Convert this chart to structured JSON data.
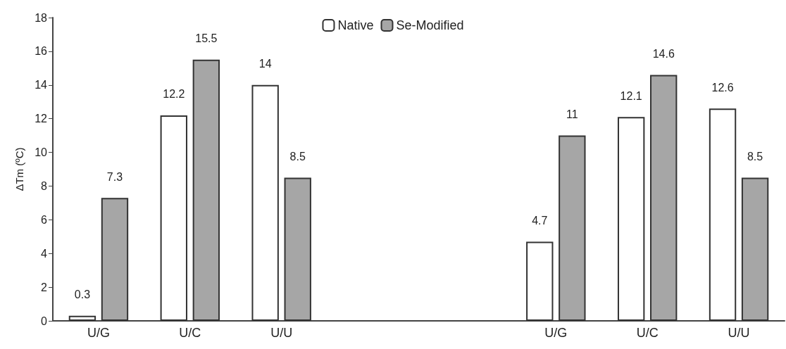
{
  "chart_data": {
    "type": "bar",
    "ylabel": "ΔTm (ºC)",
    "categories": [
      "U/G",
      "U/C",
      "U/U",
      null,
      null,
      "U/G",
      "U/C",
      "U/U"
    ],
    "series": [
      {
        "name": "Native",
        "color": "#ffffff",
        "values": [
          0.3,
          12.2,
          14,
          null,
          null,
          4.7,
          12.1,
          12.6
        ]
      },
      {
        "name": "Se-Modified",
        "color": "#a6a6a6",
        "values": [
          7.3,
          15.5,
          8.5,
          null,
          null,
          11,
          14.6,
          8.5
        ]
      }
    ],
    "ylim": [
      0,
      18
    ],
    "yticks": [
      0,
      2,
      4,
      6,
      8,
      10,
      12,
      14,
      16,
      18
    ],
    "grid": false,
    "legend": "top",
    "data_labels": true
  }
}
